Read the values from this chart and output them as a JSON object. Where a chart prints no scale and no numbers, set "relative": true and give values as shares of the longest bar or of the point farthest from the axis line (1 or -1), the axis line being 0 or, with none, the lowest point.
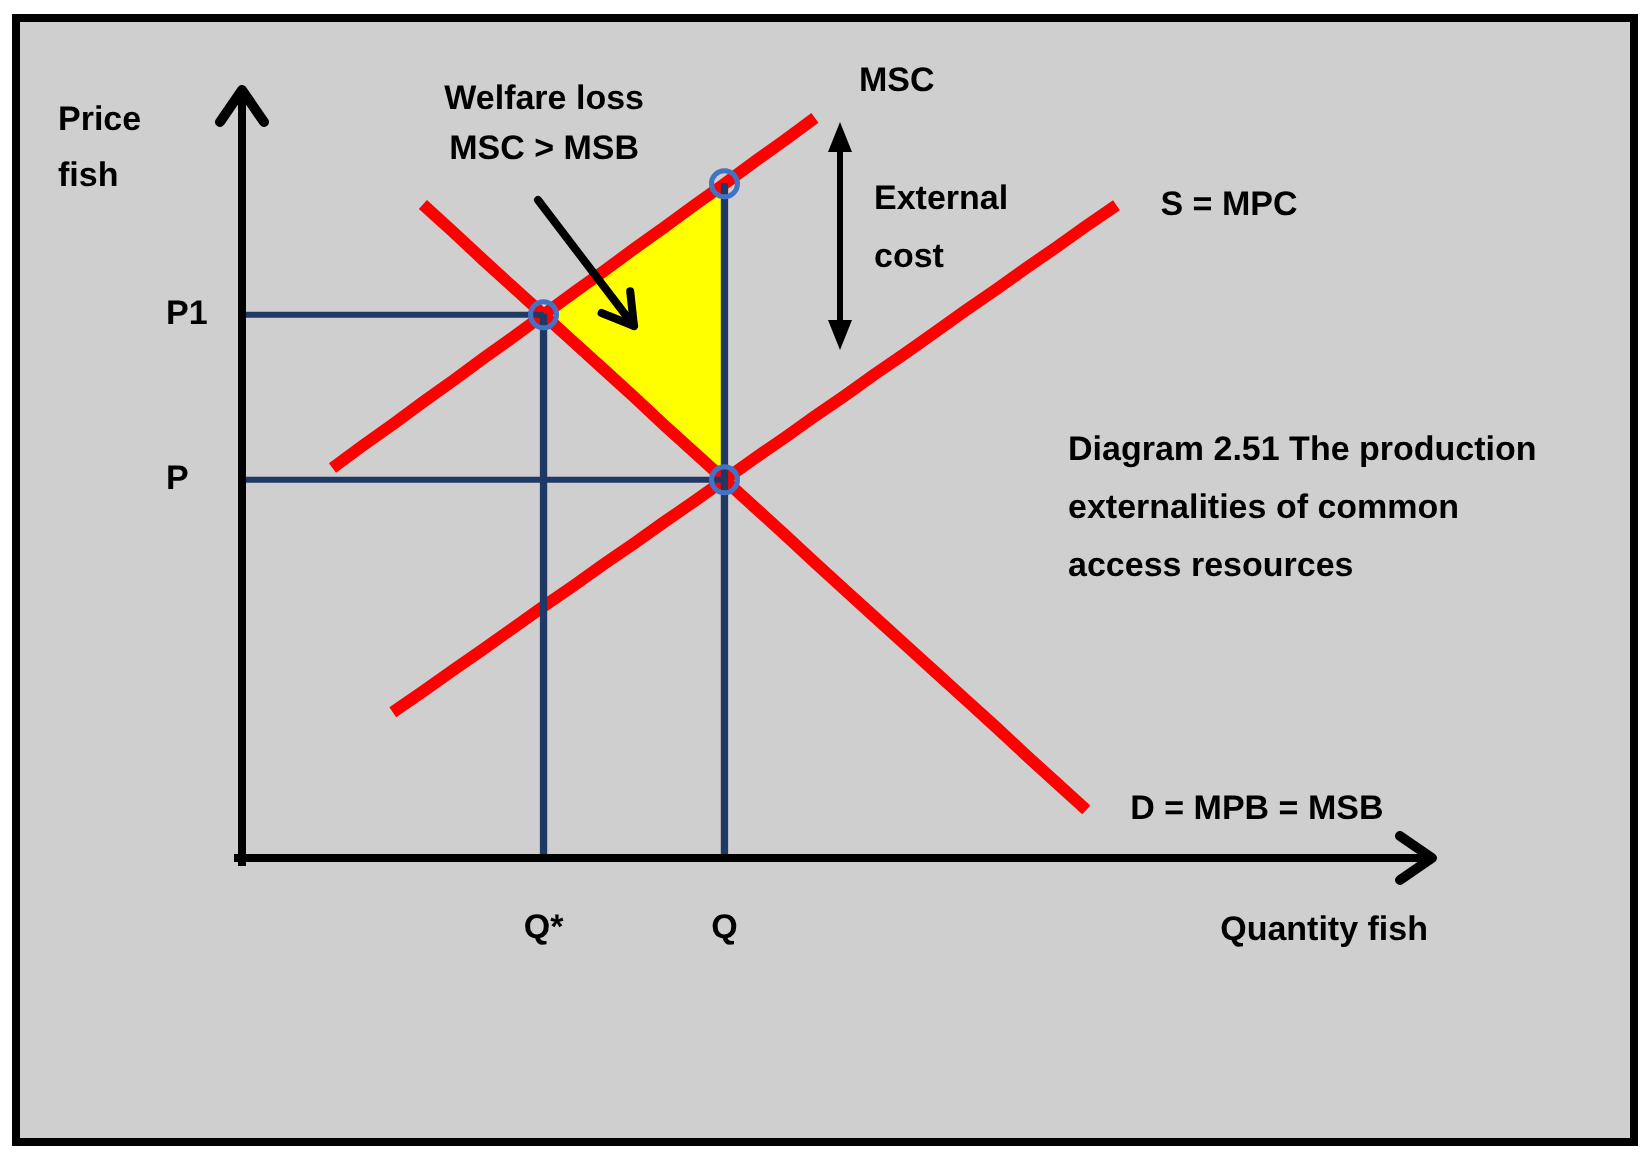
{
  "chart_data": {
    "type": "line",
    "title": "Diagram 2.51 The production externalities of common access resources",
    "xlabel": "Quantity fish",
    "ylabel": "Price fish",
    "relative": true,
    "categories": [
      null,
      null,
      null,
      null,
      null,
      null,
      null,
      null,
      null,
      null,
      "Q*",
      null,
      null,
      null,
      null,
      null,
      "Q",
      null,
      null,
      null,
      null,
      null,
      null,
      null,
      null,
      null,
      null,
      null,
      null,
      null,
      null,
      null,
      null,
      null,
      null,
      null,
      null,
      null,
      null,
      null
    ],
    "series": [
      {
        "name": "MSC",
        "color": "#ff0000",
        "values": [
          null,
          null,
          null,
          0.527,
          0.557,
          0.586,
          0.616,
          0.645,
          0.675,
          0.704,
          0.734,
          0.764,
          0.793,
          0.823,
          0.852,
          0.882,
          0.911,
          0.941,
          0.97,
          1,
          null,
          null,
          null,
          null,
          null,
          null,
          null,
          null,
          null,
          null,
          null,
          null,
          null,
          null,
          null,
          null,
          null,
          null,
          null,
          null
        ]
      },
      {
        "name": "S = MPC",
        "color": "#ff0000",
        "values": [
          null,
          null,
          null,
          null,
          null,
          0.197,
          0.225,
          0.254,
          0.282,
          0.311,
          0.34,
          0.368,
          0.397,
          0.425,
          0.454,
          0.482,
          0.511,
          0.54,
          0.568,
          0.597,
          0.625,
          0.654,
          0.682,
          0.711,
          0.74,
          0.768,
          0.797,
          0.825,
          0.854,
          0.882,
          null,
          null,
          null,
          null,
          null,
          null,
          null,
          null,
          null,
          null
        ]
      },
      {
        "name": "D = MPB = MSB",
        "color": "#ff0000",
        "values": [
          null,
          null,
          null,
          null,
          null,
          null,
          0.883,
          0.846,
          0.808,
          0.771,
          0.734,
          0.697,
          0.66,
          0.623,
          0.585,
          0.548,
          0.511,
          0.474,
          0.437,
          0.399,
          0.362,
          0.325,
          0.288,
          0.251,
          0.214,
          0.177,
          0.139,
          0.102,
          0.065,
          null,
          null,
          null,
          null,
          null,
          null,
          null,
          null,
          null,
          null,
          null
        ]
      },
      {
        "type": "scatter",
        "color": "#4472c4",
        "marker": "circle",
        "x": [
          "Q*",
          "Q",
          "Q"
        ],
        "values": [
          0.734,
          0.911,
          0.511
        ]
      },
      {
        "name": "P1",
        "color": "#203864",
        "values": [
          0.734,
          0.734,
          0.734,
          0.734,
          0.734,
          0.734,
          0.734,
          0.734,
          0.734,
          0.734,
          0.734,
          null,
          null,
          null,
          null,
          null,
          null,
          null,
          null,
          null,
          null,
          null,
          null,
          null,
          null,
          null,
          null,
          null,
          null,
          null,
          null,
          null,
          null,
          null,
          null,
          null,
          null,
          null,
          null,
          null
        ]
      },
      {
        "name": "P",
        "color": "#203864",
        "values": [
          0.511,
          0.511,
          0.511,
          0.511,
          0.511,
          0.511,
          0.511,
          0.511,
          0.511,
          0.511,
          0.511,
          0.511,
          0.511,
          0.511,
          0.511,
          0.511,
          0.511,
          null,
          null,
          null,
          null,
          null,
          null,
          null,
          null,
          null,
          null,
          null,
          null,
          null,
          null,
          null,
          null,
          null,
          null,
          null,
          null,
          null,
          null,
          null
        ]
      },
      {
        "type": "bar",
        "color": "#203864",
        "values": [
          null,
          null,
          null,
          null,
          null,
          null,
          null,
          null,
          null,
          null,
          0.734,
          null,
          null,
          null,
          null,
          null,
          0.911,
          null,
          null,
          null,
          null,
          null,
          null,
          null,
          null,
          null,
          null,
          null,
          null,
          null,
          null,
          null,
          null,
          null,
          null,
          null,
          null,
          null,
          null,
          null
        ]
      }
    ],
    "annotations": [
      "Welfare loss MSC > MSB",
      "External cost"
    ]
  }
}
